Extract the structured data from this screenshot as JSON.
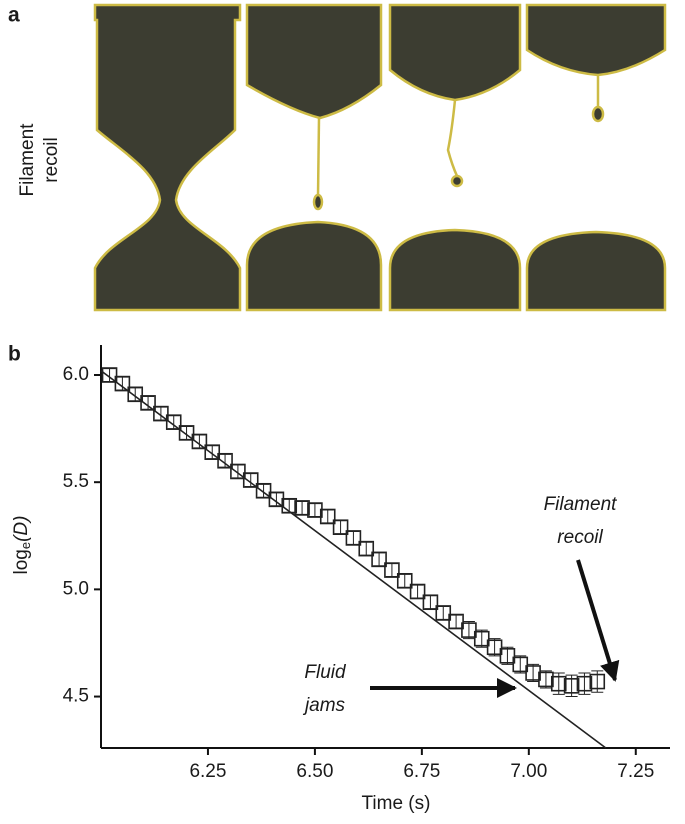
{
  "panel_a": {
    "label": "a",
    "side_label": [
      "Filament",
      "recoil"
    ]
  },
  "chart_data": {
    "type": "scatter",
    "panel_label": "b",
    "xlabel": "Time (s)",
    "ylabel": {
      "base": "log",
      "sub": "e",
      "arg": "(D)"
    },
    "xlim": [
      6.0,
      7.33
    ],
    "ylim": [
      4.26,
      6.14
    ],
    "xticks": [
      {
        "value": 6.25,
        "label": "6.25"
      },
      {
        "value": 6.5,
        "label": "6.50"
      },
      {
        "value": 6.75,
        "label": "6.75"
      },
      {
        "value": 7,
        "label": "7.00"
      },
      {
        "value": 7.25,
        "label": "7.25"
      }
    ],
    "yticks": [
      {
        "value": 4.5,
        "label": "4.5"
      },
      {
        "value": 5,
        "label": "5.0"
      },
      {
        "value": 5.5,
        "label": "5.5"
      },
      {
        "value": 6,
        "label": "6.0"
      }
    ],
    "color": "#222222",
    "series": [
      {
        "type": "scatter",
        "x": [
          6.02,
          6.05,
          6.08,
          6.11,
          6.14,
          6.17,
          6.2,
          6.23,
          6.26,
          6.29,
          6.32,
          6.35,
          6.38,
          6.41,
          6.44,
          6.47,
          6.5,
          6.53,
          6.56,
          6.59,
          6.62,
          6.65,
          6.68,
          6.71,
          6.74,
          6.77,
          6.8,
          6.83,
          6.86,
          6.89,
          6.92,
          6.95,
          6.98,
          7.01,
          7.04,
          7.07,
          7.1,
          7.13,
          7.16
        ],
        "values": [
          6.0,
          5.96,
          5.91,
          5.87,
          5.82,
          5.78,
          5.73,
          5.69,
          5.64,
          5.6,
          5.55,
          5.51,
          5.46,
          5.42,
          5.39,
          5.38,
          5.37,
          5.34,
          5.29,
          5.24,
          5.19,
          5.14,
          5.09,
          5.04,
          4.99,
          4.94,
          4.89,
          4.85,
          4.81,
          4.77,
          4.73,
          4.69,
          4.65,
          4.61,
          4.58,
          4.56,
          4.55,
          4.56,
          4.57
        ],
        "errors": [
          0.03,
          0.03,
          0.03,
          0.03,
          0.03,
          0.03,
          0.03,
          0.03,
          0.03,
          0.03,
          0.03,
          0.03,
          0.03,
          0.03,
          0.03,
          0.03,
          0.03,
          0.03,
          0.03,
          0.03,
          0.03,
          0.03,
          0.03,
          0.03,
          0.03,
          0.03,
          0.03,
          0.03,
          0.04,
          0.04,
          0.04,
          0.04,
          0.04,
          0.04,
          0.04,
          0.05,
          0.05,
          0.05,
          0.05
        ]
      },
      {
        "type": "line",
        "x": [
          6.0,
          7.18
        ],
        "values": [
          6.02,
          4.26
        ]
      }
    ],
    "annotations": [
      {
        "text": [
          "Filament",
          "recoil"
        ]
      },
      {
        "text": [
          "Fluid",
          "jams"
        ]
      }
    ]
  }
}
